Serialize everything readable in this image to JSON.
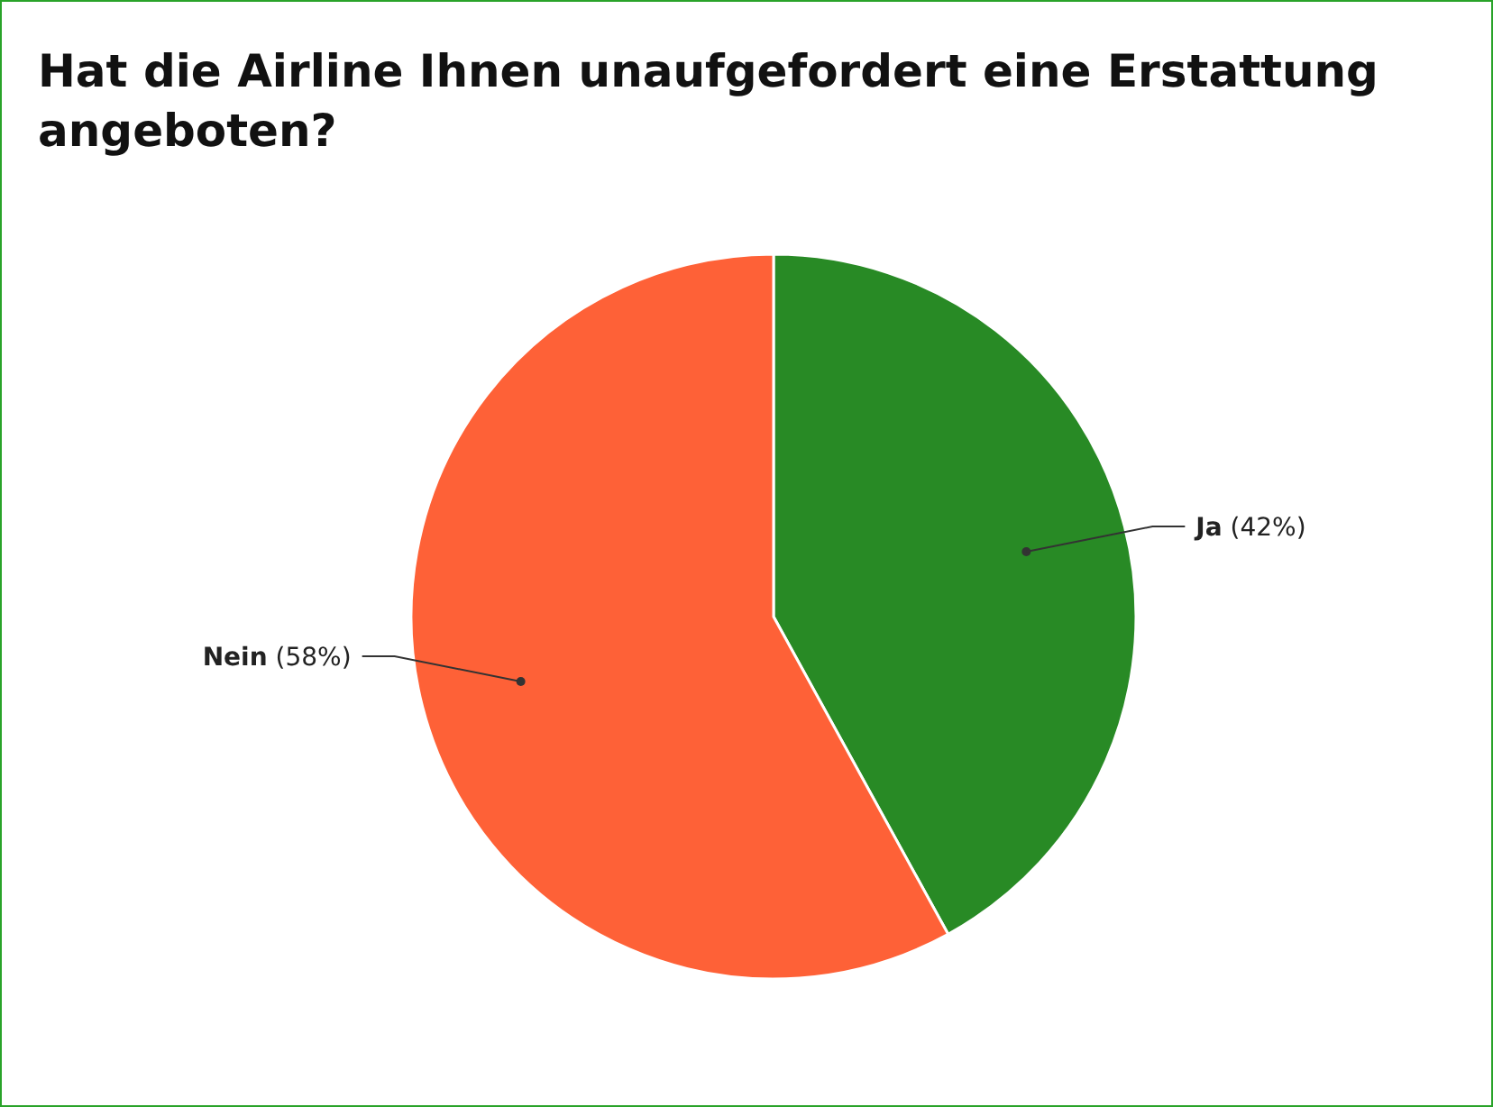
{
  "chart_data": {
    "type": "pie",
    "title": "Hat die Airline Ihnen unaufgefordert eine Erstattung angeboten?",
    "categories": [
      "Ja",
      "Nein"
    ],
    "values": [
      42,
      58
    ],
    "colors": [
      "#288a25",
      "#fe6137"
    ],
    "value_labels": [
      "(42%)",
      "(58%)"
    ]
  }
}
